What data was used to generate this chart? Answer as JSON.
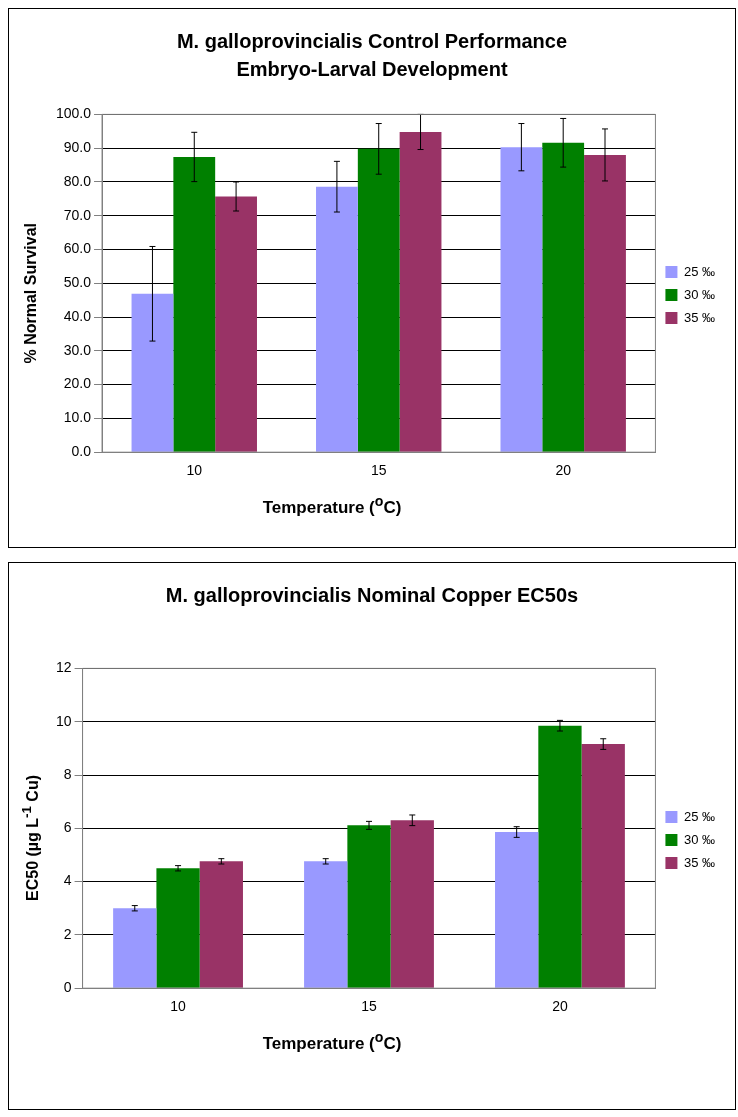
{
  "chart_data": [
    {
      "type": "bar",
      "title": "M. galloprovincialis  Control Performance\nEmbryo-Larval Development",
      "xlabel": "Temperature ($^{o}$C)",
      "ylabel": "% Normal Survival",
      "categories": [
        "10",
        "15",
        "20"
      ],
      "series": [
        {
          "name": "25 ‰",
          "color": "#9999ff",
          "values": [
            46.9,
            78.6,
            90.3
          ],
          "errors": [
            14,
            7.5,
            7
          ]
        },
        {
          "name": "30 ‰",
          "color": "#008000",
          "values": [
            87.4,
            89.8,
            91.6
          ],
          "errors": [
            7.3,
            7.5,
            7.2
          ]
        },
        {
          "name": "35 ‰",
          "color": "#993366",
          "values": [
            75.7,
            94.8,
            88.0
          ],
          "errors": [
            4.3,
            5.2,
            7.7
          ]
        }
      ],
      "ylim": [
        0,
        100
      ],
      "yticks": [
        {
          "value": 0,
          "label": "0.0"
        },
        {
          "value": 10,
          "label": "10.0"
        },
        {
          "value": 20,
          "label": "20.0"
        },
        {
          "value": 30,
          "label": "30.0"
        },
        {
          "value": 40,
          "label": "40.0"
        },
        {
          "value": 50,
          "label": "50.0"
        },
        {
          "value": 60,
          "label": "60.0"
        },
        {
          "value": 70,
          "label": "70.0"
        },
        {
          "value": 80,
          "label": "80.0"
        },
        {
          "value": 90,
          "label": "90.0"
        },
        {
          "value": 100,
          "label": "100.0"
        }
      ],
      "grid": "y",
      "legend": "right"
    },
    {
      "type": "bar",
      "title": "M. galloprovincialis  Nominal Copper EC50s",
      "xlabel": "Temperature ($^{o}$C)",
      "ylabel": "EC50 (µg L$^{-1}$ Cu)",
      "categories": [
        "10",
        "15",
        "20"
      ],
      "series": [
        {
          "name": "25 ‰",
          "color": "#9999ff",
          "values": [
            3.0,
            4.76,
            5.86
          ],
          "errors": [
            0.1,
            0.1,
            0.2
          ]
        },
        {
          "name": "30 ‰",
          "color": "#008000",
          "values": [
            4.5,
            6.11,
            9.85
          ],
          "errors": [
            0.1,
            0.15,
            0.2
          ]
        },
        {
          "name": "35 ‰",
          "color": "#993366",
          "values": [
            4.76,
            6.3,
            9.16
          ],
          "errors": [
            0.1,
            0.2,
            0.2
          ]
        }
      ],
      "ylim": [
        0,
        12
      ],
      "yticks": [
        0,
        2,
        4,
        6,
        8,
        10,
        12
      ],
      "grid": "y",
      "legend": "right"
    }
  ]
}
